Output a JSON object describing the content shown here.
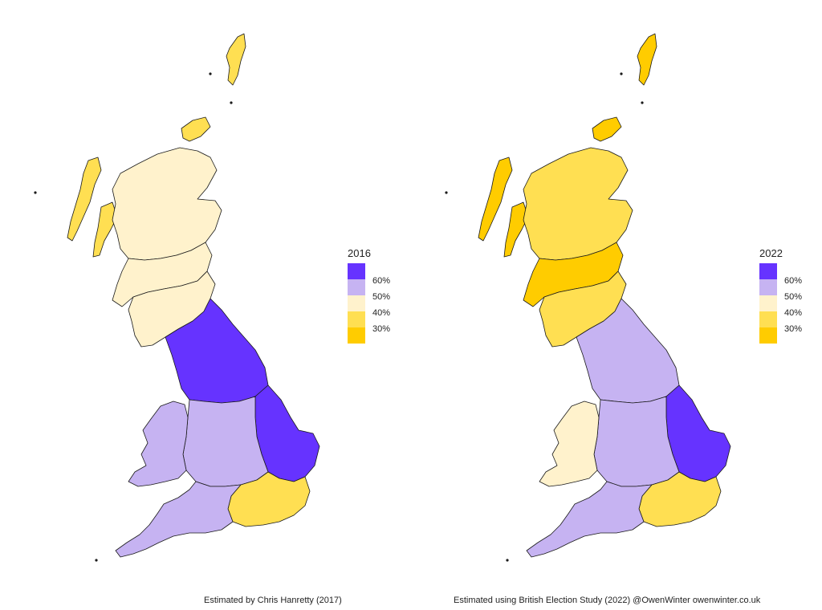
{
  "colors": {
    "strong_leave": "#6633ff",
    "leave": "#c6b3f2",
    "balanced": "#fff2cc",
    "remain": "#ffdf52",
    "strong_remain": "#ffcc00",
    "outline": "#1a1a1a"
  },
  "legend_ticks": [
    "60%",
    "50%",
    "40%",
    "30%"
  ],
  "maps": [
    {
      "legend_title": "2016",
      "credit": "Estimated by Chris Hanretty (2017)",
      "region_shares": {
        "scotland_north": 0.46,
        "scotland_central": 0.4,
        "scotland_islands": 0.36,
        "north_england": 0.6,
        "east_england": 0.64,
        "midlands": 0.58,
        "wales": 0.53,
        "london": 0.38,
        "south_west": 0.53
      }
    },
    {
      "legend_title": "2022",
      "credit": "Estimated using British Election Study (2022) @OwenWinter owenwinter.co.uk",
      "region_shares": {
        "scotland_north": 0.38,
        "scotland_central": 0.33,
        "scotland_islands": 0.34,
        "north_england": 0.54,
        "east_england": 0.6,
        "midlands": 0.54,
        "wales": 0.48,
        "london": 0.35,
        "south_west": 0.52
      }
    }
  ]
}
